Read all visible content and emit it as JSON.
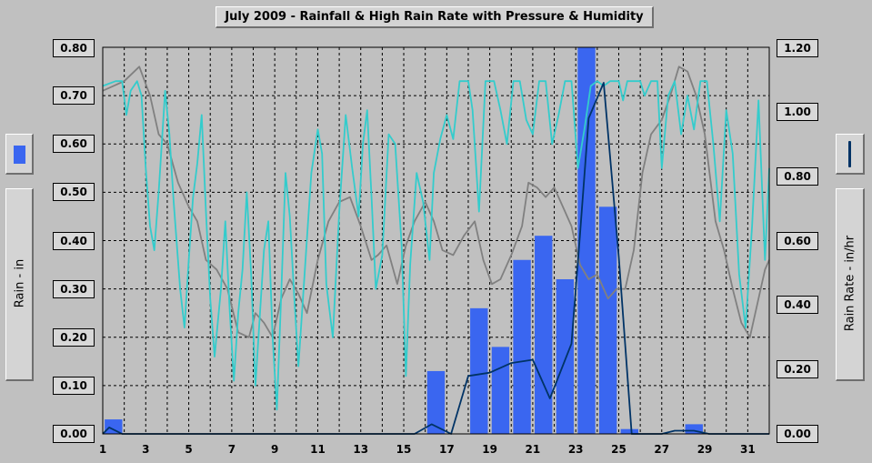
{
  "title": "July 2009 - Rainfall & High Rain Rate with Pressure & Humidity",
  "left_axis_title": "Rain - in",
  "right_axis_title": "Rain Rate - in/hr",
  "icons": {
    "left": "blue-bar-swatch-icon",
    "right": "blue-line-swatch-icon"
  },
  "colors": {
    "rainfall": "#3a66f0",
    "rain_rate": "#003366",
    "pressure": "#808080",
    "humidity": "#33cccc",
    "plot_bg": "#c0c0c0"
  },
  "chart_data": {
    "type": "bar",
    "title": "July 2009 - Rainfall & High Rain Rate with Pressure & Humidity",
    "xlim": [
      1,
      32
    ],
    "x_ticks": [
      "1",
      "3",
      "5",
      "7",
      "9",
      "11",
      "13",
      "15",
      "17",
      "19",
      "21",
      "23",
      "25",
      "27",
      "29",
      "31"
    ],
    "ylim_left": [
      0,
      0.8
    ],
    "y_ticks_left": [
      "0.00",
      "0.10",
      "0.20",
      "0.30",
      "0.40",
      "0.50",
      "0.60",
      "0.70",
      "0.80"
    ],
    "ylim_right": [
      0,
      1.2
    ],
    "y_ticks_right": [
      "0.00",
      "0.20",
      "0.40",
      "0.60",
      "0.80",
      "1.00",
      "1.20"
    ],
    "grid": true,
    "series": [
      {
        "name": "Rain - in",
        "type": "bar",
        "axis": "left",
        "points": [
          [
            1.5,
            0.03
          ],
          [
            16.5,
            0.13
          ],
          [
            18.5,
            0.26
          ],
          [
            19.5,
            0.18
          ],
          [
            20.5,
            0.36
          ],
          [
            21.5,
            0.41
          ],
          [
            22.5,
            0.32
          ],
          [
            23.5,
            0.8
          ],
          [
            24.5,
            0.47
          ],
          [
            25.5,
            0.01
          ],
          [
            28.5,
            0.02
          ]
        ]
      },
      {
        "name": "Rain Rate - in/hr",
        "type": "line",
        "axis": "right",
        "points": [
          [
            1.0,
            0.0
          ],
          [
            1.3,
            0.02
          ],
          [
            1.9,
            0.0
          ],
          [
            15.5,
            0.0
          ],
          [
            16.3,
            0.03
          ],
          [
            16.6,
            0.02
          ],
          [
            17.2,
            0.0
          ],
          [
            18.0,
            0.18
          ],
          [
            19.0,
            0.19
          ],
          [
            20.0,
            0.22
          ],
          [
            21.0,
            0.23
          ],
          [
            21.8,
            0.11
          ],
          [
            22.8,
            0.28
          ],
          [
            23.2,
            0.62
          ],
          [
            23.6,
            0.98
          ],
          [
            24.3,
            1.09
          ],
          [
            25.0,
            0.55
          ],
          [
            25.6,
            0.0
          ],
          [
            27.0,
            0.0
          ],
          [
            27.6,
            0.01
          ],
          [
            28.5,
            0.01
          ],
          [
            29.2,
            0.0
          ],
          [
            32.0,
            0.0
          ]
        ]
      },
      {
        "name": "Pressure",
        "type": "line",
        "axis": "left",
        "points": [
          [
            1.0,
            0.71
          ],
          [
            2.0,
            0.73
          ],
          [
            2.7,
            0.76
          ],
          [
            3.2,
            0.7
          ],
          [
            3.6,
            0.62
          ],
          [
            4.0,
            0.6
          ],
          [
            4.5,
            0.52
          ],
          [
            5.0,
            0.47
          ],
          [
            5.4,
            0.44
          ],
          [
            5.8,
            0.36
          ],
          [
            6.3,
            0.34
          ],
          [
            6.8,
            0.3
          ],
          [
            7.3,
            0.21
          ],
          [
            7.8,
            0.2
          ],
          [
            8.1,
            0.25
          ],
          [
            8.5,
            0.23
          ],
          [
            8.9,
            0.2
          ],
          [
            9.3,
            0.28
          ],
          [
            9.7,
            0.32
          ],
          [
            10.1,
            0.29
          ],
          [
            10.5,
            0.25
          ],
          [
            11.0,
            0.36
          ],
          [
            11.5,
            0.44
          ],
          [
            12.0,
            0.48
          ],
          [
            12.5,
            0.49
          ],
          [
            13.0,
            0.43
          ],
          [
            13.5,
            0.36
          ],
          [
            13.8,
            0.37
          ],
          [
            14.2,
            0.39
          ],
          [
            14.7,
            0.31
          ],
          [
            15.1,
            0.39
          ],
          [
            15.5,
            0.44
          ],
          [
            16.0,
            0.48
          ],
          [
            16.4,
            0.44
          ],
          [
            16.8,
            0.38
          ],
          [
            17.3,
            0.37
          ],
          [
            17.8,
            0.41
          ],
          [
            18.3,
            0.44
          ],
          [
            18.7,
            0.36
          ],
          [
            19.1,
            0.31
          ],
          [
            19.5,
            0.32
          ],
          [
            20.0,
            0.37
          ],
          [
            20.5,
            0.43
          ],
          [
            20.8,
            0.52
          ],
          [
            21.2,
            0.51
          ],
          [
            21.6,
            0.49
          ],
          [
            22.0,
            0.51
          ],
          [
            22.4,
            0.47
          ],
          [
            22.8,
            0.43
          ],
          [
            23.2,
            0.35
          ],
          [
            23.6,
            0.32
          ],
          [
            24.0,
            0.33
          ],
          [
            24.5,
            0.28
          ],
          [
            24.9,
            0.3
          ],
          [
            25.3,
            0.3
          ],
          [
            25.7,
            0.38
          ],
          [
            26.1,
            0.54
          ],
          [
            26.5,
            0.62
          ],
          [
            27.0,
            0.65
          ],
          [
            27.4,
            0.7
          ],
          [
            27.8,
            0.76
          ],
          [
            28.2,
            0.75
          ],
          [
            28.6,
            0.7
          ],
          [
            29.0,
            0.62
          ],
          [
            29.5,
            0.44
          ],
          [
            29.9,
            0.38
          ],
          [
            30.3,
            0.3
          ],
          [
            30.7,
            0.23
          ],
          [
            31.1,
            0.2
          ],
          [
            31.5,
            0.28
          ],
          [
            31.8,
            0.34
          ],
          [
            32.0,
            0.36
          ]
        ]
      },
      {
        "name": "Humidity",
        "type": "line",
        "axis": "left",
        "points": [
          [
            1.0,
            0.72
          ],
          [
            1.6,
            0.73
          ],
          [
            1.9,
            0.73
          ],
          [
            2.1,
            0.66
          ],
          [
            2.3,
            0.71
          ],
          [
            2.6,
            0.73
          ],
          [
            2.8,
            0.7
          ],
          [
            3.0,
            0.55
          ],
          [
            3.2,
            0.43
          ],
          [
            3.4,
            0.38
          ],
          [
            3.6,
            0.5
          ],
          [
            3.9,
            0.71
          ],
          [
            4.1,
            0.62
          ],
          [
            4.3,
            0.48
          ],
          [
            4.6,
            0.3
          ],
          [
            4.8,
            0.22
          ],
          [
            5.0,
            0.36
          ],
          [
            5.2,
            0.49
          ],
          [
            5.4,
            0.56
          ],
          [
            5.6,
            0.66
          ],
          [
            5.8,
            0.46
          ],
          [
            6.0,
            0.28
          ],
          [
            6.2,
            0.16
          ],
          [
            6.5,
            0.3
          ],
          [
            6.7,
            0.44
          ],
          [
            6.9,
            0.26
          ],
          [
            7.1,
            0.11
          ],
          [
            7.3,
            0.25
          ],
          [
            7.5,
            0.34
          ],
          [
            7.7,
            0.5
          ],
          [
            7.9,
            0.33
          ],
          [
            8.1,
            0.1
          ],
          [
            8.3,
            0.24
          ],
          [
            8.5,
            0.38
          ],
          [
            8.7,
            0.44
          ],
          [
            8.9,
            0.2
          ],
          [
            9.1,
            0.05
          ],
          [
            9.3,
            0.29
          ],
          [
            9.5,
            0.54
          ],
          [
            9.7,
            0.45
          ],
          [
            9.9,
            0.29
          ],
          [
            10.1,
            0.14
          ],
          [
            10.4,
            0.34
          ],
          [
            10.7,
            0.54
          ],
          [
            11.0,
            0.63
          ],
          [
            11.2,
            0.58
          ],
          [
            11.4,
            0.31
          ],
          [
            11.7,
            0.2
          ],
          [
            12.0,
            0.46
          ],
          [
            12.3,
            0.66
          ],
          [
            12.6,
            0.55
          ],
          [
            12.9,
            0.45
          ],
          [
            13.1,
            0.6
          ],
          [
            13.3,
            0.67
          ],
          [
            13.5,
            0.49
          ],
          [
            13.7,
            0.3
          ],
          [
            14.0,
            0.37
          ],
          [
            14.3,
            0.62
          ],
          [
            14.6,
            0.6
          ],
          [
            14.9,
            0.39
          ],
          [
            15.1,
            0.12
          ],
          [
            15.3,
            0.35
          ],
          [
            15.6,
            0.54
          ],
          [
            15.9,
            0.48
          ],
          [
            16.2,
            0.36
          ],
          [
            16.4,
            0.54
          ],
          [
            16.7,
            0.61
          ],
          [
            17.0,
            0.66
          ],
          [
            17.3,
            0.61
          ],
          [
            17.6,
            0.73
          ],
          [
            18.0,
            0.73
          ],
          [
            18.2,
            0.67
          ],
          [
            18.5,
            0.46
          ],
          [
            18.8,
            0.73
          ],
          [
            19.2,
            0.73
          ],
          [
            19.5,
            0.67
          ],
          [
            19.8,
            0.6
          ],
          [
            20.1,
            0.73
          ],
          [
            20.4,
            0.73
          ],
          [
            20.7,
            0.65
          ],
          [
            21.0,
            0.62
          ],
          [
            21.3,
            0.73
          ],
          [
            21.6,
            0.73
          ],
          [
            21.9,
            0.6
          ],
          [
            22.2,
            0.66
          ],
          [
            22.5,
            0.73
          ],
          [
            22.8,
            0.73
          ],
          [
            23.1,
            0.55
          ],
          [
            23.4,
            0.63
          ],
          [
            23.7,
            0.72
          ],
          [
            24.0,
            0.73
          ],
          [
            24.3,
            0.72
          ],
          [
            24.6,
            0.73
          ],
          [
            25.0,
            0.73
          ],
          [
            25.2,
            0.69
          ],
          [
            25.4,
            0.73
          ],
          [
            25.7,
            0.73
          ],
          [
            26.0,
            0.73
          ],
          [
            26.2,
            0.7
          ],
          [
            26.5,
            0.73
          ],
          [
            26.8,
            0.73
          ],
          [
            27.0,
            0.55
          ],
          [
            27.3,
            0.7
          ],
          [
            27.6,
            0.73
          ],
          [
            27.9,
            0.62
          ],
          [
            28.2,
            0.7
          ],
          [
            28.5,
            0.63
          ],
          [
            28.8,
            0.73
          ],
          [
            29.1,
            0.73
          ],
          [
            29.4,
            0.6
          ],
          [
            29.7,
            0.44
          ],
          [
            30.0,
            0.67
          ],
          [
            30.3,
            0.58
          ],
          [
            30.6,
            0.33
          ],
          [
            30.9,
            0.22
          ],
          [
            31.2,
            0.43
          ],
          [
            31.5,
            0.69
          ],
          [
            31.8,
            0.36
          ],
          [
            32.0,
            0.55
          ]
        ]
      }
    ]
  }
}
